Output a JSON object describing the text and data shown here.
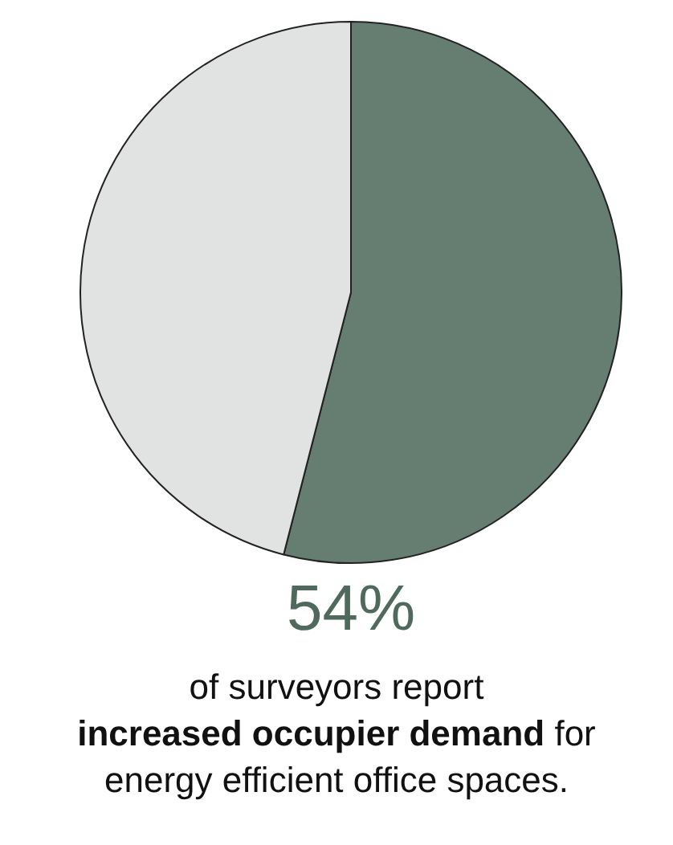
{
  "chart_data": {
    "type": "pie",
    "categories": [
      null,
      null
    ],
    "values": [
      54,
      46
    ],
    "colors": [
      "#667d72",
      "#e0e3e2"
    ],
    "value_labels": [
      "54%",
      null
    ],
    "annotations": [
      "of surveyors report",
      "increased occupier demand",
      "for energy efficient office spaces."
    ],
    "legend": false
  }
}
